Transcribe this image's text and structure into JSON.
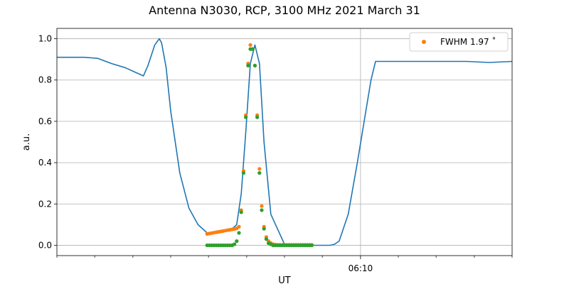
{
  "chart_data": {
    "type": "line",
    "title": "Antenna N3030, RCP, 3100 MHz 2021 March 31",
    "xlabel": "UT",
    "ylabel": "a.u.",
    "xlim": [
      0,
      1
    ],
    "ylim": [
      -0.05,
      1.05
    ],
    "x_ticks": [
      {
        "x": 0.667,
        "label": "06:10"
      }
    ],
    "x_minor_ticks": [
      0.0,
      0.083,
      0.167,
      0.25,
      0.333,
      0.417,
      0.5,
      0.583,
      0.75,
      0.833,
      0.917,
      1.0
    ],
    "y_ticks": [
      0.0,
      0.2,
      0.4,
      0.6,
      0.8,
      1.0
    ],
    "y_tick_labels": [
      "0.0",
      "0.2",
      "0.4",
      "0.6",
      "0.8",
      "1.0"
    ],
    "grid": true,
    "legend_placement": "top-right",
    "series": [
      {
        "kind": "line",
        "color": "#1f77b4",
        "x": [
          0.0,
          0.03,
          0.06,
          0.09,
          0.12,
          0.15,
          0.17,
          0.19,
          0.2,
          0.215,
          0.225,
          0.23,
          0.24,
          0.25,
          0.27,
          0.29,
          0.31,
          0.33,
          0.345,
          0.36,
          0.375,
          0.385,
          0.395,
          0.405,
          0.415,
          0.425,
          0.435,
          0.445,
          0.455,
          0.47,
          0.5,
          0.54,
          0.59,
          0.6,
          0.61,
          0.62,
          0.64,
          0.66,
          0.675,
          0.69,
          0.7,
          0.75,
          0.8,
          0.85,
          0.9,
          0.95,
          1.0
        ],
        "y": [
          0.91,
          0.91,
          0.91,
          0.905,
          0.88,
          0.86,
          0.84,
          0.82,
          0.87,
          0.97,
          1.0,
          0.98,
          0.86,
          0.65,
          0.35,
          0.18,
          0.1,
          0.06,
          0.065,
          0.07,
          0.075,
          0.08,
          0.1,
          0.25,
          0.55,
          0.88,
          0.97,
          0.88,
          0.5,
          0.15,
          0.005,
          0.0,
          0.0,
          0.0,
          0.005,
          0.02,
          0.15,
          0.4,
          0.6,
          0.8,
          0.89,
          0.89,
          0.89,
          0.89,
          0.89,
          0.885,
          0.89
        ]
      },
      {
        "kind": "scatter",
        "name": "FWHM 1.97$^\\circ$",
        "color": "#ff7f0e",
        "x": [
          0.33,
          0.335,
          0.34,
          0.345,
          0.35,
          0.355,
          0.36,
          0.365,
          0.37,
          0.375,
          0.38,
          0.385,
          0.39,
          0.395,
          0.4,
          0.405,
          0.41,
          0.415,
          0.42,
          0.425,
          0.43,
          0.435,
          0.44,
          0.445,
          0.45,
          0.455,
          0.46,
          0.465,
          0.47,
          0.475,
          0.48,
          0.485,
          0.49,
          0.495,
          0.5,
          0.505,
          0.51,
          0.515,
          0.52,
          0.525,
          0.53,
          0.535,
          0.54,
          0.545,
          0.55,
          0.555,
          0.56
        ],
        "y": [
          0.055,
          0.057,
          0.059,
          0.061,
          0.063,
          0.065,
          0.067,
          0.069,
          0.071,
          0.073,
          0.075,
          0.077,
          0.079,
          0.082,
          0.09,
          0.17,
          0.36,
          0.63,
          0.88,
          0.97,
          0.95,
          0.87,
          0.63,
          0.37,
          0.19,
          0.09,
          0.04,
          0.02,
          0.01,
          0.005,
          0.003,
          0.002,
          0.002,
          0.002,
          0.002,
          0.002,
          0.002,
          0.002,
          0.002,
          0.002,
          0.002,
          0.002,
          0.002,
          0.002,
          0.002,
          0.002,
          0.002
        ]
      },
      {
        "kind": "scatter",
        "color": "#2ca02c",
        "x": [
          0.33,
          0.335,
          0.34,
          0.345,
          0.35,
          0.355,
          0.36,
          0.365,
          0.37,
          0.375,
          0.38,
          0.385,
          0.39,
          0.395,
          0.4,
          0.405,
          0.41,
          0.415,
          0.42,
          0.425,
          0.43,
          0.435,
          0.44,
          0.445,
          0.45,
          0.455,
          0.46,
          0.465,
          0.47,
          0.475,
          0.48,
          0.485,
          0.49,
          0.495,
          0.5,
          0.505,
          0.51,
          0.515,
          0.52,
          0.525,
          0.53,
          0.535,
          0.54,
          0.545,
          0.55,
          0.555,
          0.56
        ],
        "y": [
          0.0,
          0.0,
          0.0,
          0.0,
          0.0,
          0.0,
          0.0,
          0.0,
          0.0,
          0.0,
          0.0,
          0.0,
          0.005,
          0.02,
          0.06,
          0.16,
          0.35,
          0.62,
          0.87,
          0.95,
          0.95,
          0.87,
          0.62,
          0.35,
          0.17,
          0.08,
          0.03,
          0.01,
          0.005,
          0.0,
          0.0,
          0.0,
          0.0,
          0.0,
          0.0,
          0.0,
          0.0,
          0.0,
          0.0,
          0.0,
          0.0,
          0.0,
          0.0,
          0.0,
          0.0,
          0.0,
          0.0
        ]
      }
    ]
  },
  "legend": {
    "label": "FWHM 1.97 ˚"
  }
}
